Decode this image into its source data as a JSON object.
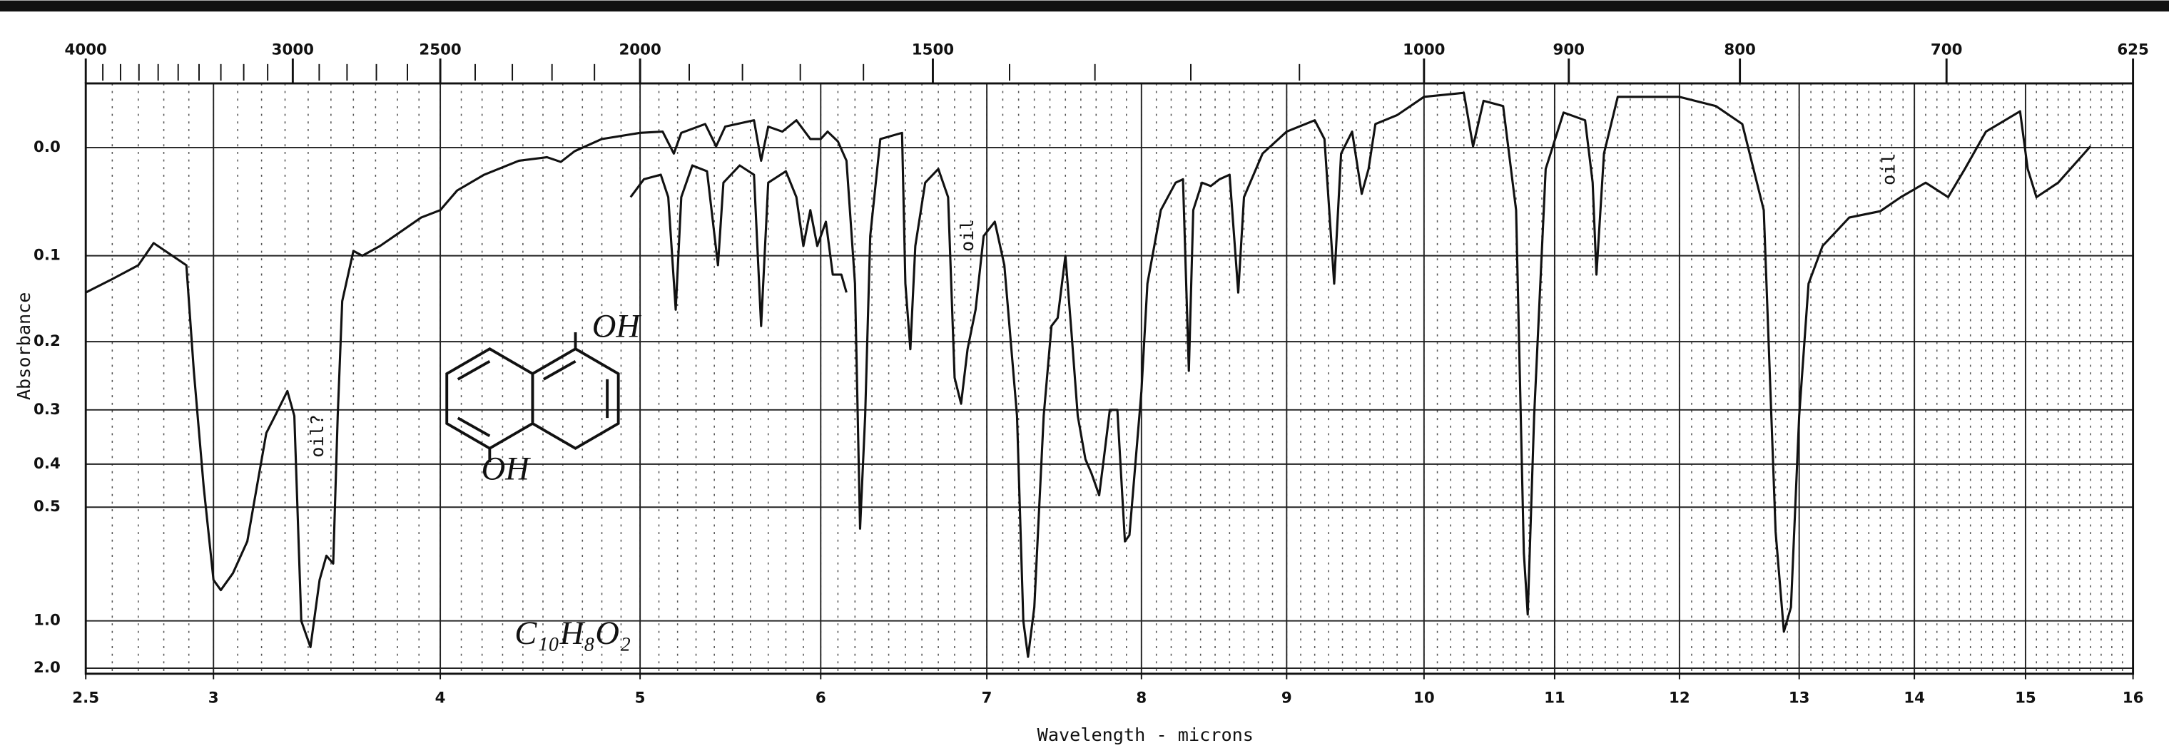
{
  "chart_data": {
    "type": "line",
    "xlabel": "Wavelength - microns",
    "ylabel": "Absorbance",
    "xscale": "sqrt",
    "xlim": [
      2.5,
      16
    ],
    "xticks": [
      2.5,
      3,
      4,
      5,
      6,
      7,
      8,
      9,
      10,
      11,
      12,
      13,
      14,
      15,
      16
    ],
    "x2scale": "wavenumber",
    "x2ticks": [
      4000,
      3000,
      2500,
      2000,
      1500,
      1000,
      900,
      800,
      700,
      625
    ],
    "yscale": "transmittance",
    "ylim": [
      2,
      -0.05
    ],
    "yticks": [
      {
        "value": 0,
        "label": "0.0"
      },
      0.1,
      0.2,
      0.3,
      0.4,
      0.5,
      {
        "value": 1,
        "label": "1.0"
      },
      {
        "value": 2,
        "label": "2.0"
      }
    ],
    "grid": true,
    "annotations": [
      "oil?",
      "oil",
      "oil",
      "OH",
      "OH",
      "C₁₀H₈O₂"
    ],
    "series": [
      {
        "color": "#111111",
        "x": [
          2.5,
          2.6,
          2.7,
          2.76,
          2.89,
          2.92,
          2.96,
          3.0,
          3.03,
          3.08,
          3.14,
          3.18,
          3.22,
          3.27,
          3.31,
          3.34,
          3.37,
          3.41,
          3.45,
          3.48,
          3.51,
          3.53,
          3.55,
          3.6,
          3.64,
          3.72,
          3.82,
          3.91,
          4.0,
          4.08,
          4.21,
          4.38,
          4.52,
          4.59,
          4.66,
          4.8,
          5.0,
          5.12,
          5.18,
          5.22,
          5.35,
          5.41,
          5.46,
          5.62,
          5.66,
          5.7,
          5.78,
          5.86,
          5.94,
          6.0,
          6.04,
          6.1,
          6.15,
          6.2,
          6.23,
          6.26,
          6.29,
          6.35,
          6.48,
          6.5,
          6.53,
          6.56,
          6.62,
          6.7,
          6.76,
          6.8,
          6.84,
          6.88,
          6.93,
          6.98,
          7.05,
          7.11,
          7.19,
          7.23,
          7.26,
          7.3,
          7.36,
          7.41,
          7.45,
          7.5,
          7.54,
          7.58,
          7.63,
          7.67,
          7.72,
          7.75,
          7.79,
          7.84,
          7.89,
          7.92,
          8.0,
          8.04,
          8.13,
          8.23,
          8.28,
          8.32,
          8.35,
          8.41,
          8.47,
          8.53,
          8.6,
          8.66,
          8.7,
          8.83,
          9.0,
          9.2,
          9.27,
          9.34,
          9.39,
          9.47,
          9.54,
          9.59,
          9.64,
          9.8,
          10.0,
          10.3,
          10.37,
          10.45,
          10.6,
          10.7,
          10.76,
          10.79,
          10.84,
          10.93,
          11.07,
          11.24,
          11.3,
          11.33,
          11.39,
          11.5,
          12.0,
          12.3,
          12.52,
          12.7,
          12.8,
          12.87,
          12.93,
          13.0,
          13.08,
          13.2,
          13.43,
          13.7,
          13.88,
          14.1,
          14.3,
          14.45,
          14.64,
          14.95,
          15.02,
          15.1,
          15.3,
          15.6
        ],
        "values": [
          0.14,
          0.125,
          0.11,
          0.087,
          0.11,
          0.24,
          0.45,
          0.75,
          0.8,
          0.72,
          0.6,
          0.45,
          0.34,
          0.3,
          0.27,
          0.31,
          1.0,
          1.3,
          0.75,
          0.65,
          0.68,
          0.31,
          0.15,
          0.095,
          0.1,
          0.09,
          0.075,
          0.062,
          0.055,
          0.037,
          0.023,
          0.011,
          0.008,
          0.012,
          0.003,
          -0.007,
          -0.012,
          -0.013,
          0.005,
          -0.012,
          -0.019,
          -0.001,
          -0.017,
          -0.022,
          0.011,
          -0.017,
          -0.013,
          -0.022,
          -0.007,
          -0.007,
          -0.013,
          -0.005,
          0.011,
          0.13,
          0.56,
          0.31,
          0.08,
          -0.007,
          -0.012,
          0.13,
          0.21,
          0.09,
          0.03,
          0.018,
          0.043,
          0.25,
          0.29,
          0.21,
          0.16,
          0.08,
          0.066,
          0.11,
          0.31,
          1.0,
          1.5,
          0.9,
          0.31,
          0.18,
          0.17,
          0.1,
          0.19,
          0.31,
          0.39,
          0.42,
          0.47,
          0.39,
          0.3,
          0.3,
          0.6,
          0.58,
          0.27,
          0.13,
          0.055,
          0.03,
          0.027,
          0.24,
          0.055,
          0.03,
          0.033,
          0.027,
          0.023,
          0.14,
          0.043,
          0.005,
          -0.013,
          -0.022,
          -0.007,
          0.13,
          0.005,
          -0.013,
          0.04,
          0.018,
          -0.019,
          -0.026,
          -0.04,
          -0.043,
          -0.001,
          -0.037,
          -0.033,
          0.055,
          0.64,
          0.95,
          0.31,
          0.018,
          -0.028,
          -0.022,
          0.03,
          0.12,
          0.005,
          -0.04,
          -0.04,
          -0.033,
          -0.019,
          0.055,
          0.57,
          1.1,
          0.9,
          0.31,
          0.13,
          0.09,
          0.062,
          0.056,
          0.043,
          0.03,
          0.043,
          0.018,
          -0.013,
          -0.029,
          0.018,
          0.043,
          0.03,
          -0.001
        ]
      },
      {
        "color": "#111111",
        "x": [
          4.95,
          5.02,
          5.11,
          5.15,
          5.19,
          5.22,
          5.28,
          5.36,
          5.42,
          5.45,
          5.54,
          5.62,
          5.66,
          5.7,
          5.8,
          5.86,
          5.9,
          5.94,
          5.98,
          6.03,
          6.07,
          6.12,
          6.15
        ],
        "values": [
          0.043,
          0.027,
          0.023,
          0.043,
          0.16,
          0.043,
          0.015,
          0.02,
          0.11,
          0.03,
          0.015,
          0.023,
          0.18,
          0.03,
          0.02,
          0.043,
          0.09,
          0.055,
          0.09,
          0.066,
          0.12,
          0.12,
          0.14
        ]
      }
    ]
  }
}
